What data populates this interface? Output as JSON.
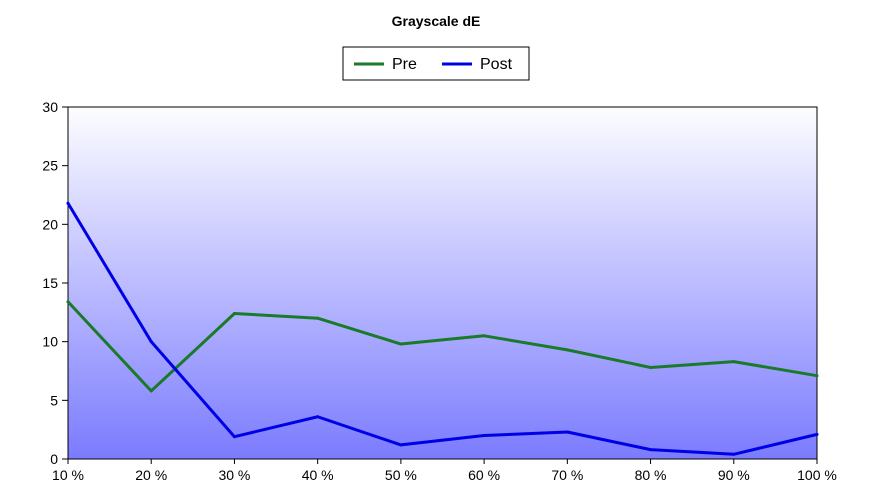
{
  "chart_data": {
    "type": "line",
    "title": "Grayscale dE",
    "xlabel": "",
    "ylabel": "",
    "categories": [
      "10 %",
      "20 %",
      "30 %",
      "40 %",
      "50 %",
      "60 %",
      "70 %",
      "80 %",
      "90 %",
      "100 %"
    ],
    "ylim": [
      0,
      30
    ],
    "yticks": [
      0,
      5,
      10,
      15,
      20,
      25,
      30
    ],
    "grid": false,
    "legend_position": "top-center",
    "background": "vertical-gradient-white-to-blue",
    "series": [
      {
        "name": "Pre",
        "color": "#1a7a2a",
        "values": [
          13.4,
          5.8,
          12.4,
          12.0,
          9.8,
          10.5,
          9.3,
          7.8,
          8.3,
          7.1
        ]
      },
      {
        "name": "Post",
        "color": "#0000e6",
        "values": [
          21.8,
          10.0,
          1.9,
          3.6,
          1.2,
          2.0,
          2.3,
          0.8,
          0.4,
          2.1
        ]
      }
    ]
  }
}
